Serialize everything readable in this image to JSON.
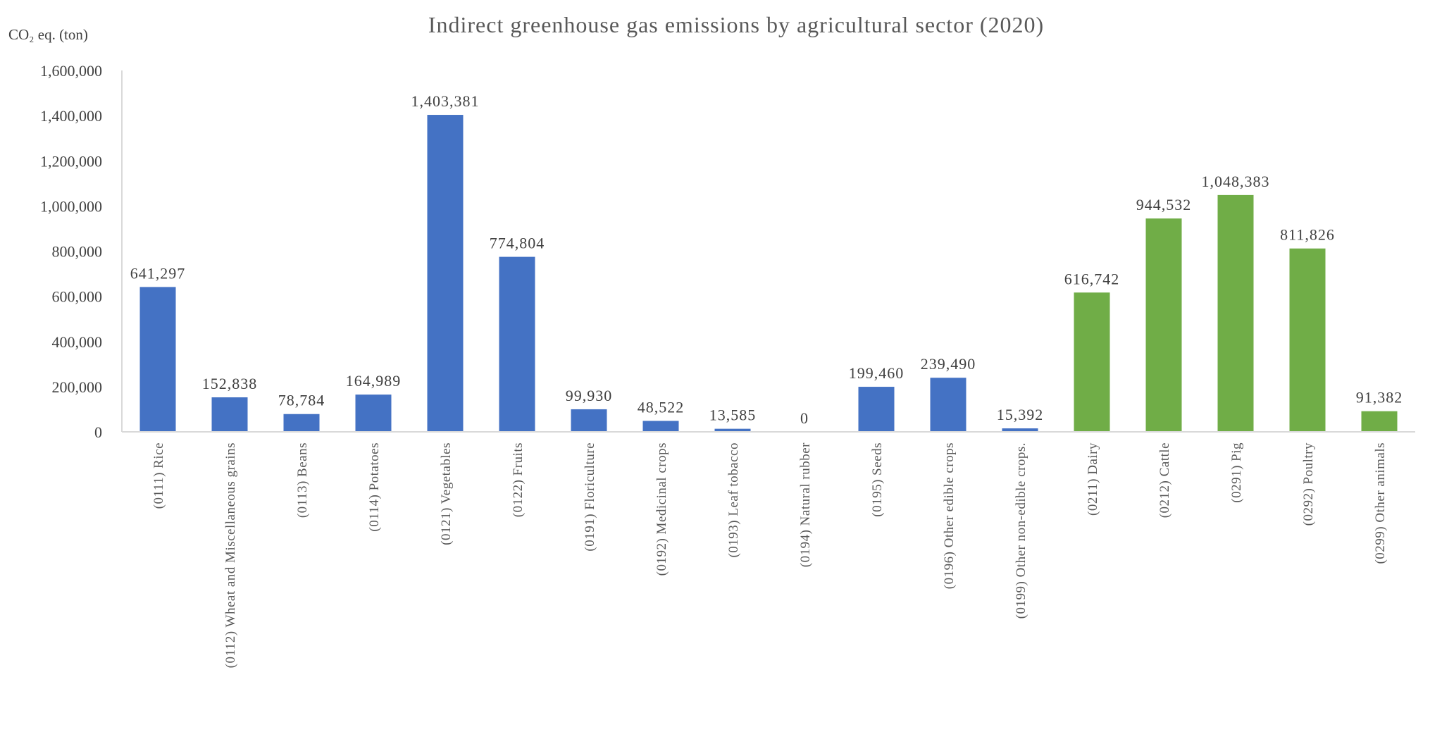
{
  "chart_data": {
    "type": "bar",
    "title": "Indirect greenhouse gas emissions by agricultural sector (2020)",
    "ylabel": "CO₂ eq. (ton)",
    "xlabel": "",
    "ylim": [
      0,
      1600000
    ],
    "yticks": [
      0,
      200000,
      400000,
      600000,
      800000,
      1000000,
      1200000,
      1400000,
      1600000
    ],
    "ytick_labels": [
      "0",
      "200,000",
      "400,000",
      "600,000",
      "800,000",
      "1,000,000",
      "1,200,000",
      "1,400,000",
      "1,600,000"
    ],
    "grid": false,
    "categories": [
      "(0111) Rice",
      "(0112) Wheat and Miscellaneous grains",
      "(0113) Beans",
      "(0114) Potatoes",
      "(0121) Vegetables",
      "(0122) Fruits",
      "(0191) Floriculture",
      "(0192) Medicinal crops",
      "(0193) Leaf tobacco",
      "(0194) Natural rubber",
      "(0195) Seeds",
      "(0196) Other edible crops",
      "(0199) Other non-edible crops.",
      "(0211) Dairy",
      "(0212) Cattle",
      "(0291) Pig",
      "(0292) Poultry",
      "(0299) Other animals"
    ],
    "values": [
      641297,
      152838,
      78784,
      164989,
      1403381,
      774804,
      99930,
      48522,
      13585,
      0,
      199460,
      239490,
      15392,
      616742,
      944532,
      1048383,
      811826,
      91382
    ],
    "value_labels": [
      "641,297",
      "152,838",
      "78,784",
      "164,989",
      "1,403,381",
      "774,804",
      "99,930",
      "48,522",
      "13,585",
      "0",
      "199,460",
      "239,490",
      "15,392",
      "616,742",
      "944,532",
      "1,048,383",
      "811,826",
      "91,382"
    ],
    "groups": [
      "crop",
      "crop",
      "crop",
      "crop",
      "crop",
      "crop",
      "crop",
      "crop",
      "crop",
      "crop",
      "crop",
      "crop",
      "crop",
      "livestock",
      "livestock",
      "livestock",
      "livestock",
      "livestock"
    ],
    "colors": {
      "crop": "#4472C4",
      "livestock": "#70AD47",
      "axis": "#D9D9D9"
    }
  }
}
